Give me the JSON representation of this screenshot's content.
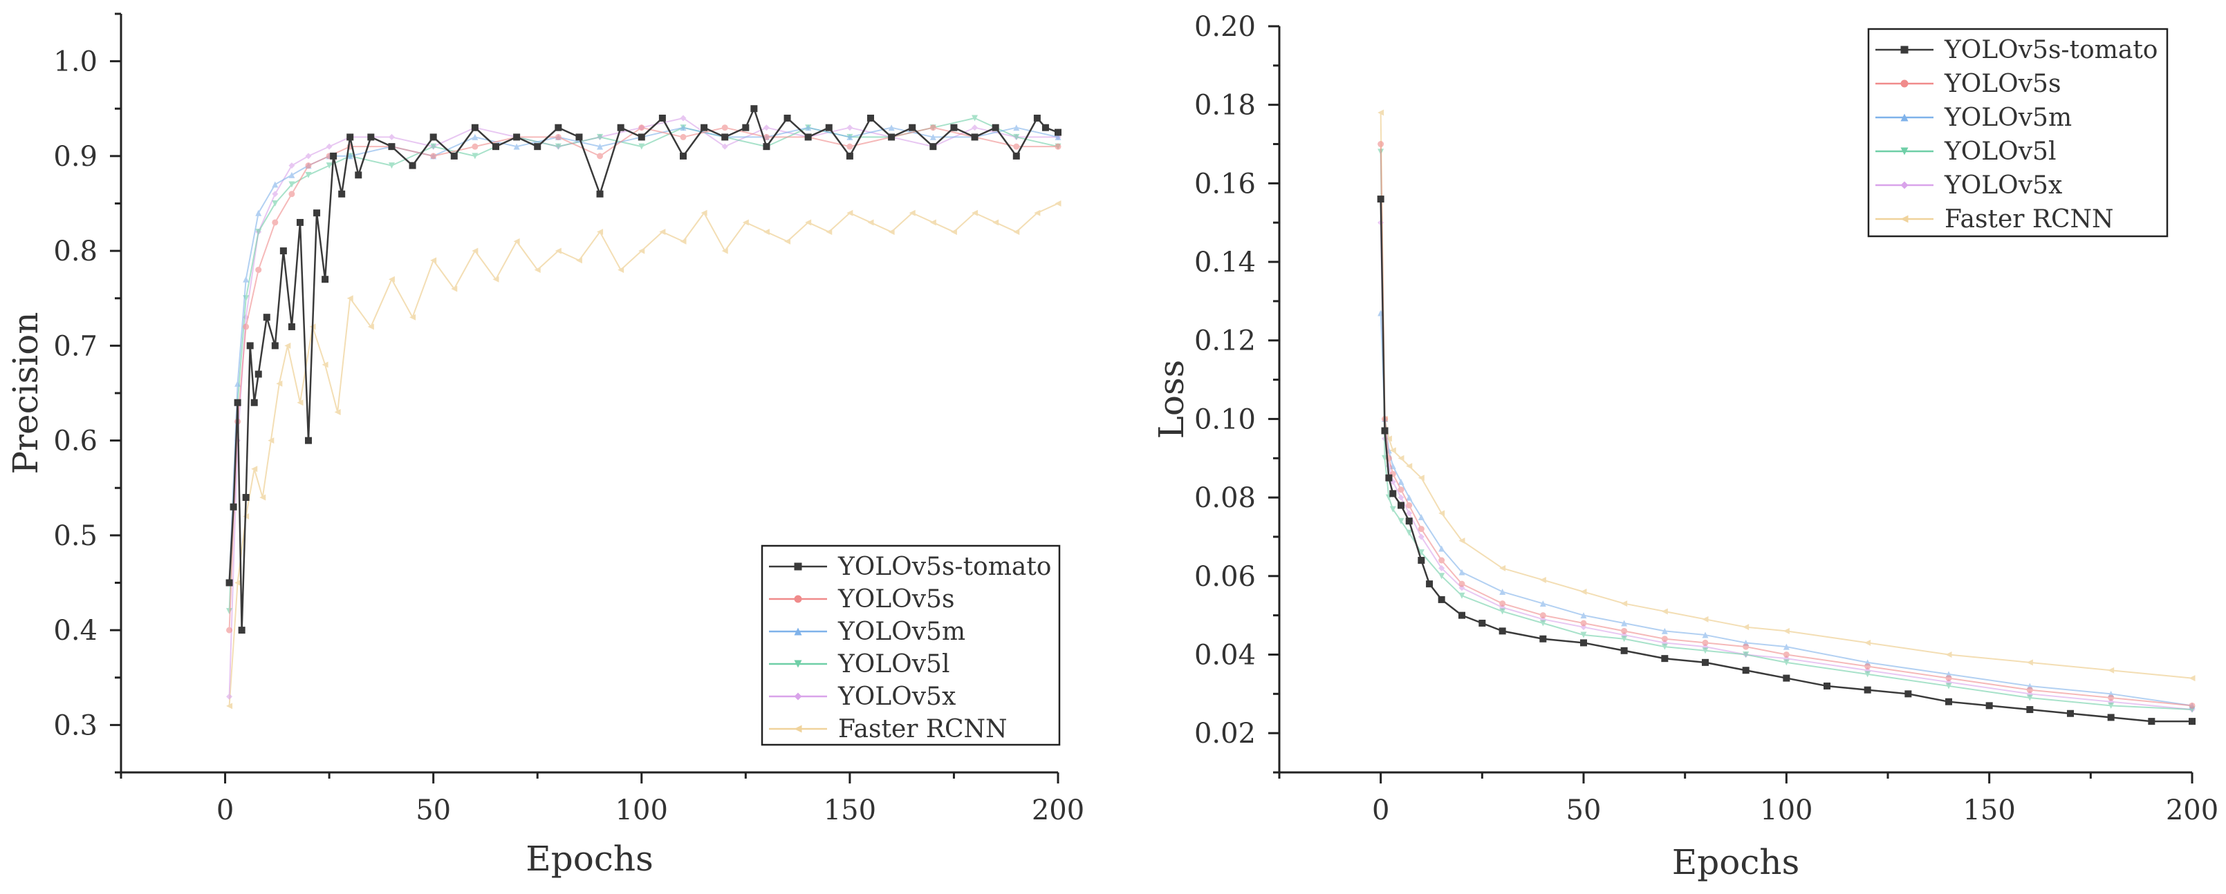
{
  "series_names": [
    "YOLOv5s-tomato",
    "YOLOv5s",
    "YOLOv5m",
    "YOLOv5l",
    "YOLOv5x",
    "Faster RCNN"
  ],
  "series_colors": [
    "#3a3a3a",
    "#f08b8b",
    "#7fb2ea",
    "#6fcfa7",
    "#d9a3ea",
    "#f0d39c"
  ],
  "series_opacity": [
    1.0,
    0.6,
    0.6,
    0.6,
    0.6,
    0.75
  ],
  "series_markers": [
    "square",
    "circle",
    "triangle-up",
    "triangle-down",
    "diamond",
    "triangle-left"
  ],
  "chart_data": [
    {
      "type": "line",
      "title": "",
      "xlabel": "Epochs",
      "ylabel": "Precision",
      "xlim": [
        -25,
        200
      ],
      "ylim": [
        0.25,
        1.05
      ],
      "xticks": [
        0,
        50,
        100,
        150,
        200
      ],
      "xtick_labels": [
        "0",
        "50",
        "100",
        "150",
        "200"
      ],
      "yticks": [
        0.3,
        0.4,
        0.5,
        0.6,
        0.7,
        0.8,
        0.9,
        1.0
      ],
      "ytick_labels": [
        "0.3",
        "0.4",
        "0.5",
        "0.6",
        "0.7",
        "0.8",
        "0.9",
        "1.0"
      ],
      "legend_position": "bottom-right",
      "grid": false,
      "series": [
        {
          "name": "YOLOv5s-tomato",
          "x": [
            1,
            2,
            3,
            4,
            5,
            6,
            7,
            8,
            10,
            12,
            14,
            16,
            18,
            20,
            22,
            24,
            26,
            28,
            30,
            32,
            35,
            40,
            45,
            50,
            55,
            60,
            65,
            70,
            75,
            80,
            85,
            90,
            95,
            100,
            105,
            110,
            115,
            120,
            125,
            127,
            130,
            135,
            140,
            145,
            150,
            155,
            160,
            165,
            170,
            175,
            180,
            185,
            190,
            195,
            197,
            200
          ],
          "values": [
            0.45,
            0.53,
            0.64,
            0.4,
            0.54,
            0.7,
            0.64,
            0.67,
            0.73,
            0.7,
            0.8,
            0.72,
            0.83,
            0.6,
            0.84,
            0.77,
            0.9,
            0.86,
            0.92,
            0.88,
            0.92,
            0.91,
            0.89,
            0.92,
            0.9,
            0.93,
            0.91,
            0.92,
            0.91,
            0.93,
            0.92,
            0.86,
            0.93,
            0.92,
            0.94,
            0.9,
            0.93,
            0.92,
            0.93,
            0.95,
            0.91,
            0.94,
            0.92,
            0.93,
            0.9,
            0.94,
            0.92,
            0.93,
            0.91,
            0.93,
            0.92,
            0.93,
            0.9,
            0.94,
            0.93,
            0.925
          ]
        },
        {
          "name": "YOLOv5s",
          "x": [
            1,
            3,
            5,
            8,
            12,
            16,
            20,
            25,
            30,
            40,
            50,
            60,
            70,
            80,
            90,
            100,
            110,
            120,
            130,
            140,
            150,
            160,
            170,
            180,
            190,
            200
          ],
          "values": [
            0.4,
            0.62,
            0.72,
            0.78,
            0.83,
            0.86,
            0.89,
            0.9,
            0.91,
            0.91,
            0.9,
            0.91,
            0.92,
            0.92,
            0.9,
            0.93,
            0.92,
            0.93,
            0.92,
            0.92,
            0.91,
            0.92,
            0.93,
            0.92,
            0.91,
            0.91
          ]
        },
        {
          "name": "YOLOv5m",
          "x": [
            1,
            3,
            5,
            8,
            12,
            16,
            20,
            25,
            30,
            40,
            50,
            60,
            70,
            80,
            90,
            100,
            110,
            120,
            130,
            140,
            150,
            160,
            170,
            180,
            190,
            200
          ],
          "values": [
            0.45,
            0.66,
            0.77,
            0.84,
            0.87,
            0.88,
            0.89,
            0.9,
            0.9,
            0.91,
            0.9,
            0.92,
            0.91,
            0.92,
            0.91,
            0.92,
            0.93,
            0.92,
            0.92,
            0.93,
            0.92,
            0.93,
            0.92,
            0.92,
            0.93,
            0.92
          ]
        },
        {
          "name": "YOLOv5l",
          "x": [
            1,
            3,
            5,
            8,
            12,
            16,
            20,
            25,
            30,
            40,
            50,
            60,
            70,
            80,
            90,
            100,
            110,
            120,
            130,
            140,
            150,
            160,
            170,
            180,
            190,
            200
          ],
          "values": [
            0.42,
            0.64,
            0.75,
            0.82,
            0.85,
            0.87,
            0.88,
            0.89,
            0.9,
            0.89,
            0.91,
            0.9,
            0.92,
            0.91,
            0.92,
            0.91,
            0.93,
            0.92,
            0.91,
            0.93,
            0.92,
            0.92,
            0.93,
            0.94,
            0.92,
            0.91
          ]
        },
        {
          "name": "YOLOv5x",
          "x": [
            1,
            3,
            5,
            8,
            12,
            16,
            20,
            25,
            30,
            40,
            50,
            60,
            70,
            80,
            90,
            100,
            110,
            120,
            130,
            140,
            150,
            160,
            170,
            180,
            190,
            200
          ],
          "values": [
            0.33,
            0.6,
            0.73,
            0.82,
            0.86,
            0.89,
            0.9,
            0.91,
            0.92,
            0.92,
            0.91,
            0.93,
            0.92,
            0.91,
            0.92,
            0.93,
            0.94,
            0.91,
            0.93,
            0.92,
            0.93,
            0.92,
            0.91,
            0.93,
            0.92,
            0.92
          ]
        },
        {
          "name": "Faster RCNN",
          "x": [
            1,
            3,
            5,
            7,
            9,
            11,
            13,
            15,
            18,
            21,
            24,
            27,
            30,
            35,
            40,
            45,
            50,
            55,
            60,
            65,
            70,
            75,
            80,
            85,
            90,
            95,
            100,
            105,
            110,
            115,
            120,
            125,
            130,
            135,
            140,
            145,
            150,
            155,
            160,
            165,
            170,
            175,
            180,
            185,
            190,
            195,
            200
          ],
          "values": [
            0.32,
            0.45,
            0.52,
            0.57,
            0.54,
            0.6,
            0.66,
            0.7,
            0.64,
            0.72,
            0.68,
            0.63,
            0.75,
            0.72,
            0.77,
            0.73,
            0.79,
            0.76,
            0.8,
            0.77,
            0.81,
            0.78,
            0.8,
            0.79,
            0.82,
            0.78,
            0.8,
            0.82,
            0.81,
            0.84,
            0.8,
            0.83,
            0.82,
            0.81,
            0.83,
            0.82,
            0.84,
            0.83,
            0.82,
            0.84,
            0.83,
            0.82,
            0.84,
            0.83,
            0.82,
            0.84,
            0.85
          ]
        }
      ]
    },
    {
      "type": "line",
      "title": "",
      "xlabel": "Epochs",
      "ylabel": "Loss",
      "xlim": [
        -25,
        200
      ],
      "ylim": [
        0.01,
        0.2
      ],
      "xticks": [
        0,
        50,
        100,
        150,
        200
      ],
      "xtick_labels": [
        "0",
        "50",
        "100",
        "150",
        "200"
      ],
      "yticks": [
        0.02,
        0.04,
        0.06,
        0.08,
        0.1,
        0.12,
        0.14,
        0.16,
        0.18,
        0.2
      ],
      "ytick_labels": [
        "0.02",
        "0.04",
        "0.06",
        "0.08",
        "0.10",
        "0.12",
        "0.14",
        "0.16",
        "0.18",
        "0.20"
      ],
      "legend_position": "top-right",
      "grid": false,
      "series": [
        {
          "name": "YOLOv5s-tomato",
          "x": [
            0,
            1,
            2,
            3,
            5,
            7,
            10,
            12,
            15,
            20,
            25,
            30,
            40,
            50,
            60,
            70,
            80,
            90,
            100,
            110,
            120,
            130,
            140,
            150,
            160,
            170,
            180,
            190,
            200
          ],
          "values": [
            0.156,
            0.097,
            0.085,
            0.081,
            0.078,
            0.074,
            0.064,
            0.058,
            0.054,
            0.05,
            0.048,
            0.046,
            0.044,
            0.043,
            0.041,
            0.039,
            0.038,
            0.036,
            0.034,
            0.032,
            0.031,
            0.03,
            0.028,
            0.027,
            0.026,
            0.025,
            0.024,
            0.023,
            0.023
          ]
        },
        {
          "name": "YOLOv5s",
          "x": [
            0,
            1,
            2,
            3,
            5,
            7,
            10,
            15,
            20,
            30,
            40,
            50,
            60,
            70,
            80,
            90,
            100,
            120,
            140,
            160,
            180,
            200
          ],
          "values": [
            0.17,
            0.1,
            0.09,
            0.086,
            0.082,
            0.078,
            0.072,
            0.064,
            0.058,
            0.053,
            0.05,
            0.048,
            0.046,
            0.044,
            0.043,
            0.042,
            0.04,
            0.037,
            0.034,
            0.031,
            0.029,
            0.027
          ]
        },
        {
          "name": "YOLOv5m",
          "x": [
            0,
            1,
            2,
            3,
            5,
            7,
            10,
            15,
            20,
            30,
            40,
            50,
            60,
            70,
            80,
            90,
            100,
            120,
            140,
            160,
            180,
            200
          ],
          "values": [
            0.127,
            0.1,
            0.092,
            0.088,
            0.084,
            0.08,
            0.075,
            0.067,
            0.061,
            0.056,
            0.053,
            0.05,
            0.048,
            0.046,
            0.045,
            0.043,
            0.042,
            0.038,
            0.035,
            0.032,
            0.03,
            0.027
          ]
        },
        {
          "name": "YOLOv5l",
          "x": [
            0,
            1,
            2,
            3,
            5,
            7,
            10,
            15,
            20,
            30,
            40,
            50,
            60,
            70,
            80,
            90,
            100,
            120,
            140,
            160,
            180,
            200
          ],
          "values": [
            0.168,
            0.09,
            0.08,
            0.077,
            0.074,
            0.071,
            0.066,
            0.06,
            0.055,
            0.051,
            0.048,
            0.045,
            0.044,
            0.042,
            0.041,
            0.04,
            0.038,
            0.035,
            0.032,
            0.029,
            0.027,
            0.026
          ]
        },
        {
          "name": "YOLOv5x",
          "x": [
            0,
            1,
            2,
            3,
            5,
            7,
            10,
            15,
            20,
            30,
            40,
            50,
            60,
            70,
            80,
            90,
            100,
            120,
            140,
            160,
            180,
            200
          ],
          "values": [
            0.15,
            0.095,
            0.088,
            0.084,
            0.08,
            0.076,
            0.07,
            0.062,
            0.057,
            0.052,
            0.049,
            0.047,
            0.045,
            0.043,
            0.042,
            0.04,
            0.039,
            0.036,
            0.033,
            0.03,
            0.028,
            0.026
          ]
        },
        {
          "name": "Faster RCNN",
          "x": [
            0,
            1,
            2,
            3,
            5,
            7,
            10,
            15,
            20,
            30,
            40,
            50,
            60,
            70,
            80,
            90,
            100,
            120,
            140,
            160,
            180,
            200
          ],
          "values": [
            0.178,
            0.1,
            0.095,
            0.092,
            0.09,
            0.088,
            0.085,
            0.076,
            0.069,
            0.062,
            0.059,
            0.056,
            0.053,
            0.051,
            0.049,
            0.047,
            0.046,
            0.043,
            0.04,
            0.038,
            0.036,
            0.034
          ]
        }
      ]
    }
  ]
}
